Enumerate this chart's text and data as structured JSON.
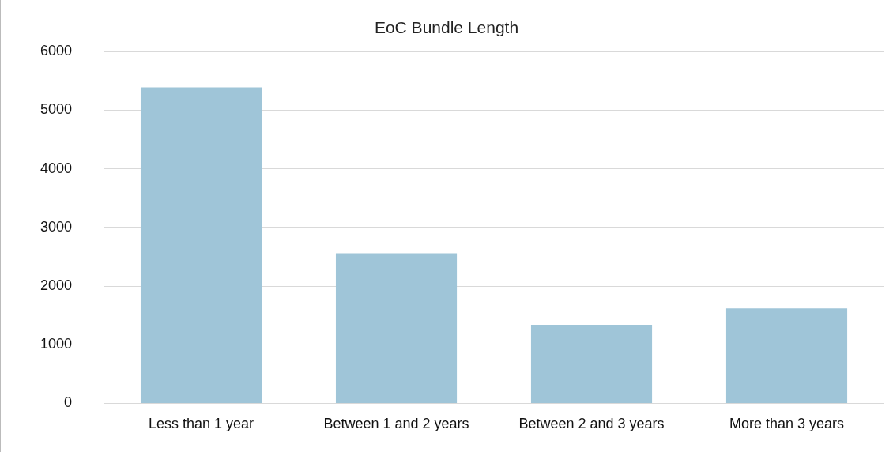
{
  "chart_data": {
    "type": "bar",
    "title": "EoC Bundle Length",
    "categories": [
      "Less than 1 year",
      "Between 1 and 2 years",
      "Between 2 and 3 years",
      "More than 3 years"
    ],
    "values": [
      5390,
      2560,
      1340,
      1620
    ],
    "color": "#9fc5d8",
    "ylim": [
      0,
      6000
    ],
    "yticks": [
      0,
      1000,
      2000,
      3000,
      4000,
      5000,
      6000
    ],
    "grid": "y"
  }
}
